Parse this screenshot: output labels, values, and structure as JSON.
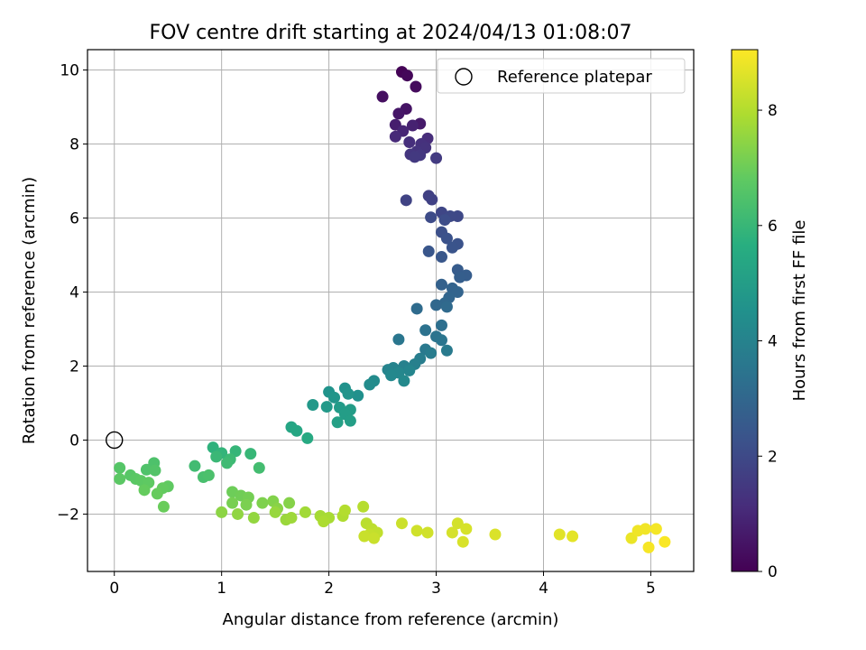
{
  "chart_data": {
    "type": "scatter",
    "title": "FOV centre drift starting at 2024/04/13 01:08:07",
    "xlabel": "Angular distance from reference (arcmin)",
    "ylabel": "Rotation from reference (arcmin)",
    "xlim": [
      -0.25,
      5.4
    ],
    "ylim": [
      -3.55,
      10.55
    ],
    "xticks": [
      0,
      1,
      2,
      3,
      4,
      5
    ],
    "yticks": [
      -2,
      0,
      2,
      4,
      6,
      8,
      10
    ],
    "xtick_labels": [
      "0",
      "1",
      "2",
      "3",
      "4",
      "5"
    ],
    "ytick_labels": [
      "−2",
      "0",
      "2",
      "4",
      "6",
      "8",
      "10"
    ],
    "grid": true,
    "legend": {
      "entries": [
        "Reference platepar"
      ],
      "location": "upper right"
    },
    "reference_point": {
      "label": "Reference platepar",
      "x": 0,
      "y": 0,
      "marker": "open-circle"
    },
    "colorbar": {
      "label": "Hours from first FF file",
      "colormap": "viridis",
      "range": [
        0,
        9.05
      ],
      "ticks": [
        0,
        2,
        4,
        6,
        8
      ],
      "tick_labels": [
        "0",
        "2",
        "4",
        "6",
        "8"
      ]
    },
    "points": [
      [
        2.68,
        9.95,
        0.05
      ],
      [
        2.73,
        9.85,
        0.15
      ],
      [
        2.81,
        9.55,
        0.25
      ],
      [
        2.5,
        9.28,
        0.35
      ],
      [
        2.72,
        8.95,
        0.45
      ],
      [
        2.65,
        8.82,
        0.55
      ],
      [
        2.85,
        8.55,
        0.65
      ],
      [
        2.62,
        8.52,
        0.75
      ],
      [
        2.78,
        8.5,
        0.85
      ],
      [
        2.69,
        8.35,
        0.95
      ],
      [
        2.62,
        8.2,
        1.05
      ],
      [
        2.92,
        8.15,
        1.15
      ],
      [
        2.75,
        8.05,
        1.2
      ],
      [
        2.86,
        8.0,
        1.25
      ],
      [
        2.9,
        7.9,
        1.3
      ],
      [
        2.82,
        7.8,
        1.35
      ],
      [
        2.76,
        7.72,
        1.4
      ],
      [
        2.85,
        7.7,
        1.45
      ],
      [
        2.8,
        7.65,
        1.5
      ],
      [
        3.0,
        7.62,
        1.55
      ],
      [
        2.93,
        6.6,
        1.7
      ],
      [
        2.96,
        6.5,
        1.75
      ],
      [
        2.72,
        6.48,
        1.8
      ],
      [
        3.05,
        6.15,
        1.9
      ],
      [
        3.2,
        6.05,
        1.95
      ],
      [
        3.13,
        6.05,
        2.0
      ],
      [
        2.95,
        6.02,
        2.05
      ],
      [
        3.08,
        5.95,
        2.1
      ],
      [
        3.05,
        5.62,
        2.2
      ],
      [
        3.1,
        5.45,
        2.25
      ],
      [
        3.2,
        5.3,
        2.3
      ],
      [
        3.15,
        5.2,
        2.35
      ],
      [
        2.93,
        5.1,
        2.4
      ],
      [
        3.05,
        4.95,
        2.45
      ],
      [
        3.2,
        4.6,
        2.6
      ],
      [
        3.28,
        4.45,
        2.65
      ],
      [
        3.22,
        4.4,
        2.7
      ],
      [
        3.05,
        4.2,
        2.8
      ],
      [
        3.15,
        4.1,
        2.85
      ],
      [
        3.2,
        4.0,
        2.9
      ],
      [
        3.12,
        3.85,
        2.95
      ],
      [
        3.08,
        3.7,
        3.0
      ],
      [
        3.0,
        3.65,
        3.05
      ],
      [
        3.1,
        3.6,
        3.1
      ],
      [
        2.82,
        3.55,
        3.15
      ],
      [
        3.05,
        3.1,
        3.3
      ],
      [
        2.9,
        2.97,
        3.4
      ],
      [
        3.0,
        2.8,
        3.45
      ],
      [
        3.05,
        2.7,
        3.5
      ],
      [
        2.65,
        2.72,
        3.55
      ],
      [
        2.9,
        2.45,
        3.65
      ],
      [
        3.1,
        2.42,
        3.7
      ],
      [
        2.85,
        2.2,
        3.8
      ],
      [
        2.95,
        2.35,
        3.75
      ],
      [
        2.8,
        2.05,
        3.9
      ],
      [
        2.7,
        2.0,
        3.95
      ],
      [
        2.6,
        1.95,
        4.0
      ],
      [
        2.55,
        1.9,
        4.05
      ],
      [
        2.75,
        1.88,
        4.1
      ],
      [
        2.65,
        1.82,
        4.15
      ],
      [
        2.58,
        1.75,
        4.2
      ],
      [
        2.7,
        1.6,
        4.25
      ],
      [
        2.42,
        1.6,
        4.3
      ],
      [
        2.38,
        1.5,
        4.35
      ],
      [
        2.27,
        1.2,
        4.5
      ],
      [
        2.15,
        1.4,
        4.55
      ],
      [
        2.0,
        1.3,
        4.6
      ],
      [
        2.18,
        1.25,
        4.65
      ],
      [
        2.05,
        1.15,
        4.7
      ],
      [
        1.85,
        0.95,
        4.8
      ],
      [
        1.98,
        0.9,
        4.85
      ],
      [
        2.1,
        0.88,
        4.9
      ],
      [
        2.2,
        0.82,
        4.95
      ],
      [
        2.15,
        0.7,
        5.0
      ],
      [
        2.2,
        0.52,
        5.05
      ],
      [
        2.08,
        0.48,
        5.1
      ],
      [
        1.65,
        0.35,
        5.3
      ],
      [
        1.7,
        0.25,
        5.35
      ],
      [
        1.8,
        0.05,
        5.45
      ],
      [
        0.92,
        -0.2,
        5.8
      ],
      [
        1.0,
        -0.35,
        5.9
      ],
      [
        1.13,
        -0.3,
        5.95
      ],
      [
        1.27,
        -0.37,
        6.0
      ],
      [
        0.95,
        -0.45,
        6.05
      ],
      [
        1.08,
        -0.52,
        6.1
      ],
      [
        1.05,
        -0.62,
        6.15
      ],
      [
        0.75,
        -0.7,
        6.2
      ],
      [
        1.35,
        -0.75,
        6.25
      ],
      [
        0.83,
        -1.0,
        6.35
      ],
      [
        0.88,
        -0.95,
        6.4
      ],
      [
        0.37,
        -0.62,
        6.45
      ],
      [
        0.3,
        -0.8,
        6.5
      ],
      [
        0.38,
        -0.82,
        6.55
      ],
      [
        0.05,
        -0.75,
        6.6
      ],
      [
        0.15,
        -0.95,
        6.65
      ],
      [
        0.2,
        -1.05,
        6.7
      ],
      [
        0.05,
        -1.05,
        6.72
      ],
      [
        0.25,
        -1.1,
        6.75
      ],
      [
        0.32,
        -1.15,
        6.78
      ],
      [
        0.5,
        -1.25,
        6.8
      ],
      [
        0.45,
        -1.3,
        6.85
      ],
      [
        0.28,
        -1.35,
        6.88
      ],
      [
        0.4,
        -1.45,
        6.9
      ],
      [
        0.46,
        -1.8,
        6.95
      ],
      [
        1.1,
        -1.4,
        7.0
      ],
      [
        1.18,
        -1.5,
        7.05
      ],
      [
        1.25,
        -1.55,
        7.1
      ],
      [
        1.1,
        -1.7,
        7.15
      ],
      [
        1.23,
        -1.75,
        7.2
      ],
      [
        1.38,
        -1.7,
        7.25
      ],
      [
        1.48,
        -1.65,
        7.3
      ],
      [
        1.63,
        -1.7,
        7.35
      ],
      [
        1.52,
        -1.85,
        7.4
      ],
      [
        1.0,
        -1.95,
        7.45
      ],
      [
        1.15,
        -2.0,
        7.5
      ],
      [
        1.3,
        -2.1,
        7.55
      ],
      [
        1.5,
        -1.95,
        7.6
      ],
      [
        1.6,
        -2.15,
        7.65
      ],
      [
        1.65,
        -2.1,
        7.7
      ],
      [
        1.78,
        -1.95,
        7.75
      ],
      [
        1.92,
        -2.05,
        7.8
      ],
      [
        2.0,
        -2.1,
        7.85
      ],
      [
        1.95,
        -2.2,
        7.9
      ],
      [
        2.13,
        -2.05,
        7.95
      ],
      [
        2.15,
        -1.9,
        8.0
      ],
      [
        2.32,
        -1.8,
        8.05
      ],
      [
        2.35,
        -2.25,
        8.1
      ],
      [
        2.4,
        -2.4,
        8.15
      ],
      [
        2.45,
        -2.5,
        8.2
      ],
      [
        2.38,
        -2.55,
        8.25
      ],
      [
        2.33,
        -2.6,
        8.3
      ],
      [
        2.42,
        -2.65,
        8.32
      ],
      [
        2.68,
        -2.25,
        8.35
      ],
      [
        2.82,
        -2.45,
        8.4
      ],
      [
        2.92,
        -2.5,
        8.42
      ],
      [
        3.2,
        -2.25,
        8.45
      ],
      [
        3.15,
        -2.5,
        8.48
      ],
      [
        3.28,
        -2.4,
        8.5
      ],
      [
        3.25,
        -2.75,
        8.52
      ],
      [
        3.55,
        -2.55,
        8.55
      ],
      [
        4.15,
        -2.55,
        8.65
      ],
      [
        4.27,
        -2.6,
        8.7
      ],
      [
        4.82,
        -2.65,
        8.8
      ],
      [
        4.88,
        -2.45,
        8.85
      ],
      [
        4.95,
        -2.4,
        8.88
      ],
      [
        5.05,
        -2.4,
        8.92
      ],
      [
        4.98,
        -2.9,
        8.95
      ],
      [
        5.13,
        -2.75,
        9.0
      ]
    ]
  }
}
